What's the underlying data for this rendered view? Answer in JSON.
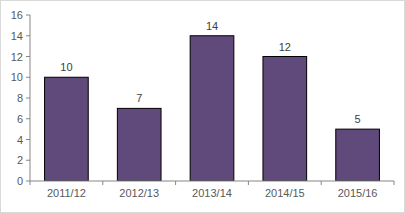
{
  "chart_data": {
    "type": "bar",
    "categories": [
      "2011/12",
      "2012/13",
      "2013/14",
      "2014/15",
      "2015/16"
    ],
    "values": [
      10,
      7,
      14,
      12,
      5
    ],
    "color": "#604a7b",
    "ylim": [
      0,
      16
    ],
    "yticks": [
      0,
      2,
      4,
      6,
      8,
      10,
      12,
      14,
      16
    ],
    "grid": false,
    "data_labels": true
  }
}
